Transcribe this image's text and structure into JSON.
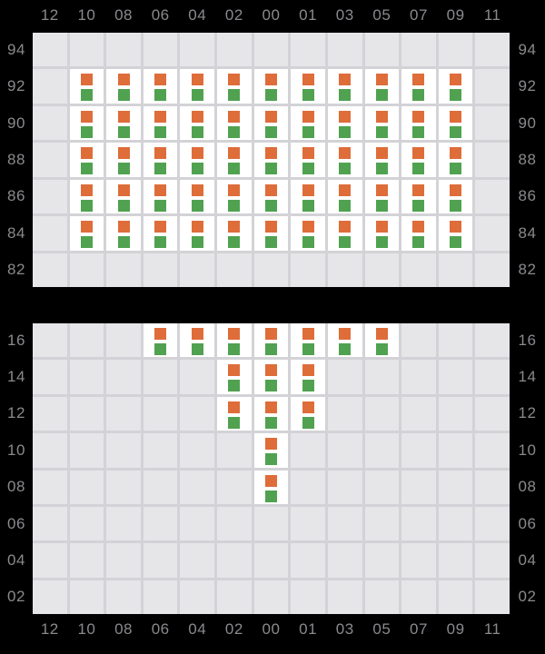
{
  "colors": {
    "background": "#000000",
    "axis_label": "#8a8a8f",
    "grid_line": "#d3d3d7",
    "cell_empty": "#e6e6e8",
    "cell_occupied": "#ffffff",
    "marker_top": "#de6d3a",
    "marker_bottom": "#50a250"
  },
  "chart_data": {
    "type": "heatmap",
    "description": "Two stacked occupancy grids. Columns are shared and labeled on both top and bottom edges; rows are labeled on both left and right edges. Occupied cells are white and contain a stacked pair of markers (orange square above green square); empty cells are light gray.",
    "columns": [
      "12",
      "10",
      "08",
      "06",
      "04",
      "02",
      "00",
      "01",
      "03",
      "05",
      "07",
      "09",
      "11"
    ],
    "marker_stack": [
      "orange-square",
      "green-square"
    ],
    "legend": "none",
    "grid": "on",
    "panels": [
      {
        "name": "upper-panel",
        "rows": [
          "94",
          "92",
          "90",
          "88",
          "86",
          "84",
          "82"
        ],
        "occupied": {
          "92": [
            "10",
            "08",
            "06",
            "04",
            "02",
            "00",
            "01",
            "03",
            "05",
            "07",
            "09"
          ],
          "90": [
            "10",
            "08",
            "06",
            "04",
            "02",
            "00",
            "01",
            "03",
            "05",
            "07",
            "09"
          ],
          "88": [
            "10",
            "08",
            "06",
            "04",
            "02",
            "00",
            "01",
            "03",
            "05",
            "07",
            "09"
          ],
          "86": [
            "10",
            "08",
            "06",
            "04",
            "02",
            "00",
            "01",
            "03",
            "05",
            "07",
            "09"
          ],
          "84": [
            "10",
            "08",
            "06",
            "04",
            "02",
            "00",
            "01",
            "03",
            "05",
            "07",
            "09"
          ]
        }
      },
      {
        "name": "lower-panel",
        "rows": [
          "16",
          "14",
          "12",
          "10",
          "08",
          "06",
          "04",
          "02"
        ],
        "occupied": {
          "16": [
            "06",
            "04",
            "02",
            "00",
            "01",
            "03",
            "05"
          ],
          "14": [
            "02",
            "00",
            "01"
          ],
          "12": [
            "02",
            "00",
            "01"
          ],
          "10": [
            "00"
          ],
          "08": [
            "00"
          ]
        }
      }
    ]
  }
}
